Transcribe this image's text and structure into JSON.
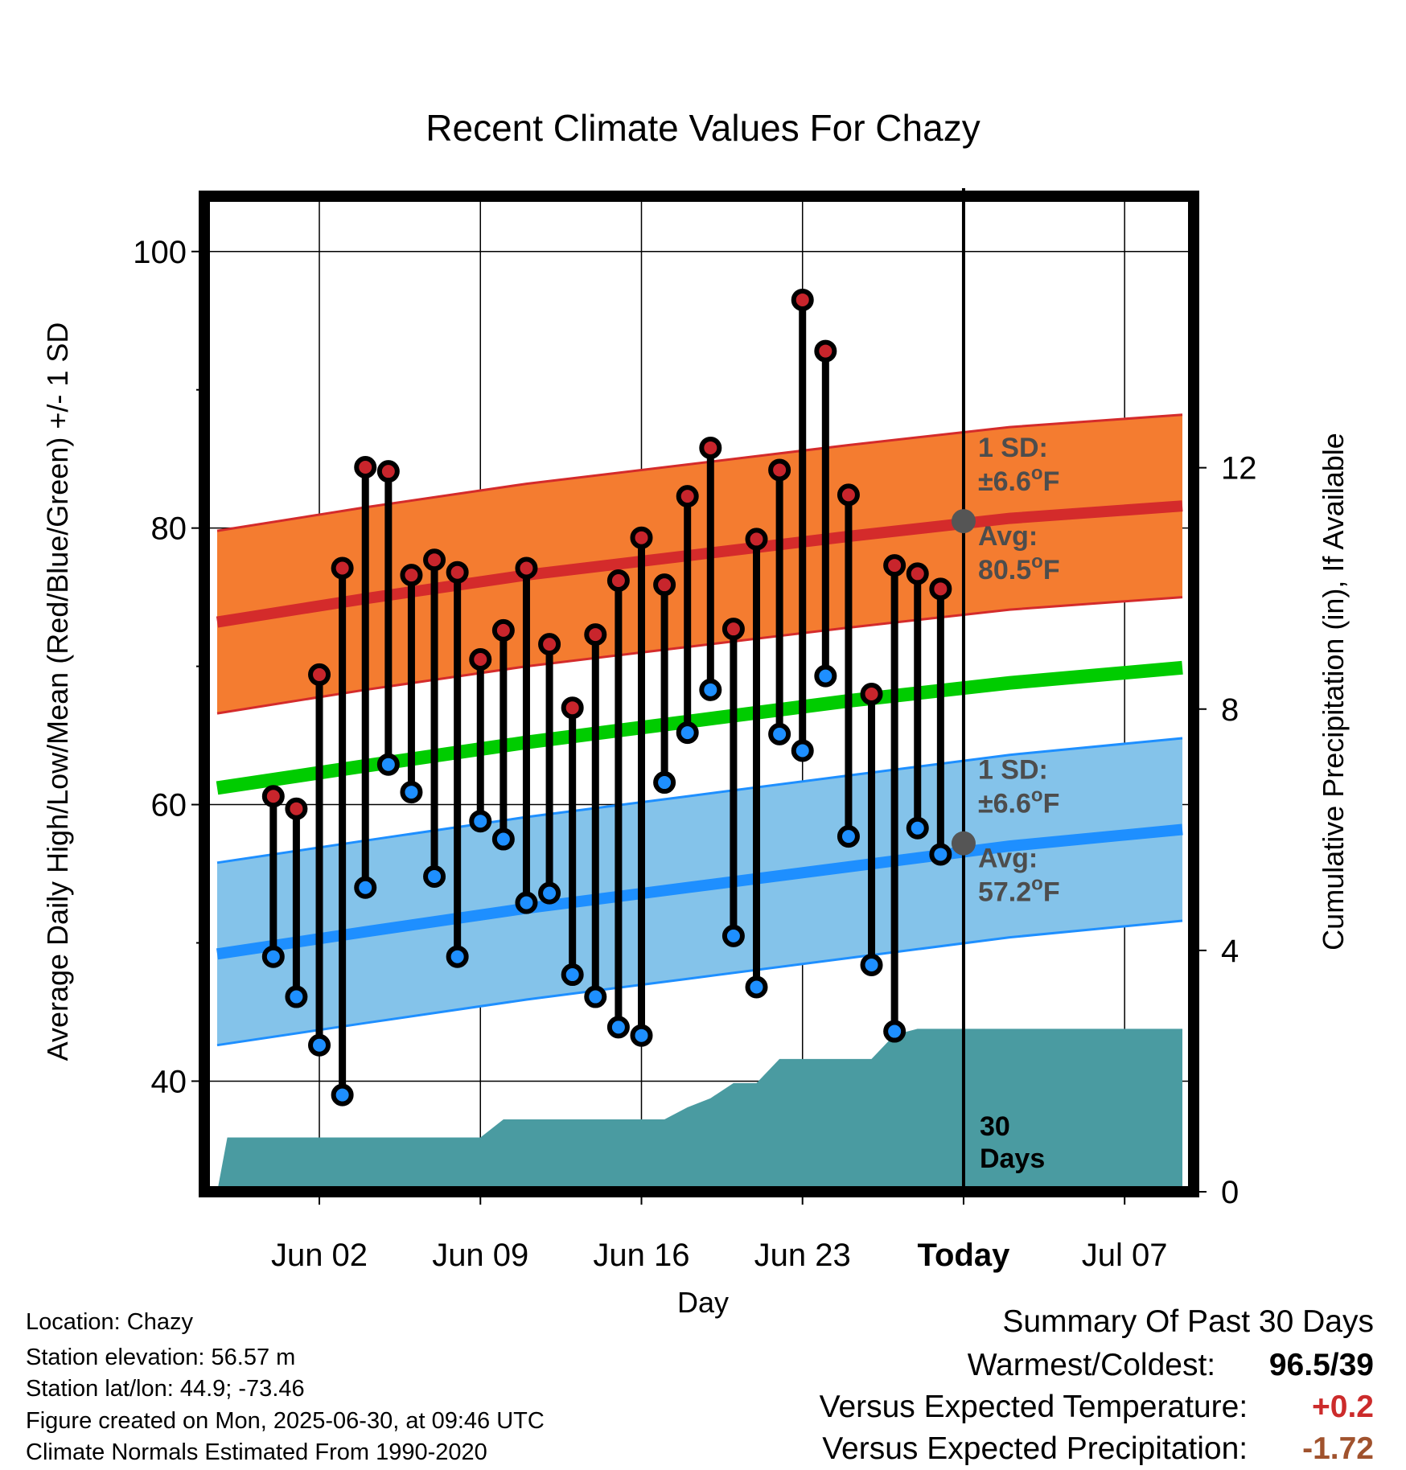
{
  "chart_data": {
    "type": "line",
    "title": "Recent Climate Values For Chazy",
    "xlabel": "Day",
    "ylabel": "Average Daily High/Low/Mean (Red/Blue/Green) +/- 1 SD",
    "y2label": "Cumulative Precipitation (in), If Available",
    "ylim": [
      32,
      104
    ],
    "y2lim": [
      0,
      16.5
    ],
    "yticks": [
      40,
      60,
      80,
      100
    ],
    "y2ticks": [
      0,
      4,
      8,
      12
    ],
    "xlim": [
      "2025-05-28",
      "2025-07-10"
    ],
    "xticks": [
      {
        "date": "2025-06-02",
        "label": "Jun 02"
      },
      {
        "date": "2025-06-09",
        "label": "Jun 09"
      },
      {
        "date": "2025-06-16",
        "label": "Jun 16"
      },
      {
        "date": "2025-06-23",
        "label": "Jun 23"
      },
      {
        "date": "2025-06-30",
        "label": "Today"
      },
      {
        "date": "2025-07-07",
        "label": "Jul 07"
      }
    ],
    "today": "2025-06-30",
    "grid": true,
    "daily": {
      "dates": [
        "2025-05-31",
        "2025-06-01",
        "2025-06-02",
        "2025-06-03",
        "2025-06-04",
        "2025-06-05",
        "2025-06-06",
        "2025-06-07",
        "2025-06-08",
        "2025-06-09",
        "2025-06-10",
        "2025-06-11",
        "2025-06-12",
        "2025-06-13",
        "2025-06-14",
        "2025-06-15",
        "2025-06-16",
        "2025-06-17",
        "2025-06-18",
        "2025-06-19",
        "2025-06-20",
        "2025-06-21",
        "2025-06-22",
        "2025-06-23",
        "2025-06-24",
        "2025-06-25",
        "2025-06-26",
        "2025-06-27",
        "2025-06-28",
        "2025-06-29"
      ],
      "high": [
        60.6,
        59.7,
        69.4,
        77.1,
        84.4,
        84.1,
        76.6,
        77.7,
        76.8,
        70.5,
        72.6,
        77.1,
        71.6,
        67.0,
        72.3,
        76.2,
        79.3,
        75.9,
        82.3,
        85.8,
        72.7,
        79.2,
        84.2,
        96.5,
        92.8,
        82.4,
        68.0,
        77.3,
        76.7,
        75.6
      ],
      "low": [
        49.0,
        46.1,
        42.6,
        39.0,
        54.0,
        62.9,
        60.9,
        54.8,
        49.0,
        58.8,
        57.5,
        52.9,
        53.6,
        47.7,
        46.1,
        43.9,
        43.3,
        61.6,
        65.2,
        68.3,
        50.5,
        46.8,
        65.1,
        63.9,
        69.3,
        57.7,
        48.4,
        43.6,
        58.3,
        56.4
      ]
    },
    "normals": {
      "dates": [
        "2025-05-28",
        "2025-06-04",
        "2025-06-11",
        "2025-06-18",
        "2025-06-25",
        "2025-07-02",
        "2025-07-10"
      ],
      "high_avg": [
        73.2,
        74.9,
        76.6,
        78.0,
        79.4,
        80.7,
        81.6
      ],
      "low_avg": [
        49.2,
        50.8,
        52.5,
        54.0,
        55.5,
        57.0,
        58.2
      ],
      "mean_avg": [
        61.2,
        62.8,
        64.5,
        66.0,
        67.5,
        68.8,
        69.9
      ],
      "sd": 6.6
    },
    "precip": {
      "dates": [
        "2025-05-28",
        "2025-05-29",
        "2025-06-08",
        "2025-06-09",
        "2025-06-10",
        "2025-06-17",
        "2025-06-18",
        "2025-06-19",
        "2025-06-20",
        "2025-06-21",
        "2025-06-22",
        "2025-06-26",
        "2025-06-27",
        "2025-06-28",
        "2025-07-10"
      ],
      "cumulative": [
        0.0,
        0.9,
        0.9,
        0.9,
        1.2,
        1.2,
        1.4,
        1.55,
        1.8,
        1.8,
        2.2,
        2.2,
        2.6,
        2.7,
        2.7
      ]
    },
    "annotations": {
      "high": {
        "sd_title": "1 SD:",
        "sd_value": "±6.6",
        "sd_unit": "F",
        "avg_title": "Avg:",
        "avg_value": "80.5",
        "avg_unit": "F",
        "y": 80.5
      },
      "low": {
        "sd_title": "1 SD:",
        "sd_value": "±6.6",
        "sd_unit": "F",
        "avg_title": "Avg:",
        "avg_value": "57.2",
        "avg_unit": "F",
        "y": 57.2
      },
      "degree": "o",
      "days": [
        "30",
        "Days"
      ]
    },
    "colors": {
      "high": "#d42b2b",
      "high_band": "#f47c30",
      "low": "#1e8fff",
      "low_band": "#84c3ea",
      "mean": "#00cc00",
      "precip": "#4a9ba1",
      "marker_high": "#c8252c",
      "marker_low": "#1e8fff",
      "today_marker": "#555555"
    }
  },
  "info": {
    "location": "Location: Chazy",
    "elevation": "Station elevation: 56.57 m",
    "latlon": "Station lat/lon: 44.9; -73.46",
    "created": "Figure created on Mon, 2025-06-30, at 09:46 UTC",
    "normals": "Climate Normals Estimated From 1990-2020"
  },
  "summary": {
    "heading": "Summary Of Past 30 Days",
    "warmest_label": "Warmest/Coldest:",
    "warmest_value": "96.5",
    "coldest_value": "39",
    "separator": "/",
    "temp_label": "Versus Expected Temperature:",
    "temp_value": "+0.2",
    "temp_color": "#cc2b2b",
    "precip_label": "Versus Expected Precipitation:",
    "precip_value": "-1.72",
    "precip_color": "#a0522d"
  }
}
